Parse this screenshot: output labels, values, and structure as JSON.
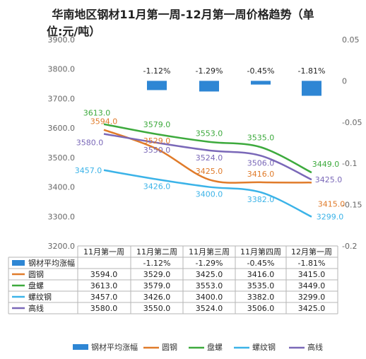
{
  "title_line1": "华南地区钢材11月第一周-12月第一周价格趋势（单",
  "title_line2": "位:元/吨）",
  "chart_data": {
    "type": "line",
    "title": "华南地区钢材11月第一周-12月第一周价格趋势（单位:元/吨）",
    "categories": [
      "11月第一周",
      "11月第二周",
      "11月第三周",
      "11月第四周",
      "12月第一周"
    ],
    "y_left": {
      "ylim": [
        3200,
        3900
      ],
      "ticks": [
        "3200.0",
        "3300.0",
        "3400.0",
        "3500.0",
        "3600.0",
        "3700.0",
        "3800.0",
        "3900.0"
      ]
    },
    "y_right": {
      "ylim": [
        -0.2,
        0.05
      ],
      "ticks": [
        "0.05",
        "0",
        "-0.05",
        "-0.1",
        "-0.15",
        "-0.2"
      ]
    },
    "grid": false,
    "legend_position": "bottom",
    "bar_series": {
      "name": "钢材平均涨幅",
      "color": "#2e86d4",
      "values": [
        null,
        -1.12,
        -1.29,
        -0.45,
        -1.81
      ],
      "labels": [
        "",
        "-1.12%",
        "-1.29%",
        "-0.45%",
        "-1.81%"
      ]
    },
    "series": [
      {
        "name": "圆钢",
        "color": "#e07b2a",
        "values": [
          3594.0,
          3529.0,
          3425.0,
          3416.0,
          3415.0
        ],
        "labels": [
          "3594.0",
          "3529.0",
          "3425.0",
          "3416.0",
          "3415.0"
        ]
      },
      {
        "name": "盘螺",
        "color": "#3daa3d",
        "values": [
          3613.0,
          3579.0,
          3553.0,
          3535.0,
          3449.0
        ],
        "labels": [
          "3613.0",
          "3579.0",
          "3553.0",
          "3535.0",
          "3449.0"
        ]
      },
      {
        "name": "螺纹钢",
        "color": "#3bb3e8",
        "values": [
          3457.0,
          3426.0,
          3400.0,
          3382.0,
          3299.0
        ],
        "labels": [
          "3457.0",
          "3426.0",
          "3400.0",
          "3382.0",
          "3299.0"
        ]
      },
      {
        "name": "高线",
        "color": "#7a68b8",
        "values": [
          3580.0,
          3550.0,
          3524.0,
          3506.0,
          3425.0
        ],
        "labels": [
          "3580.0",
          "3550.0",
          "3524.0",
          "3506.0",
          "3425.0"
        ]
      }
    ],
    "table": {
      "rows": [
        {
          "name": "钢材平均涨幅",
          "cells": [
            "",
            "-1.12%",
            "-1.29%",
            "-0.45%",
            "-1.81%"
          ]
        },
        {
          "name": "圆钢",
          "cells": [
            "3594.0",
            "3529.0",
            "3425.0",
            "3416.0",
            "3415.0"
          ]
        },
        {
          "name": "盘螺",
          "cells": [
            "3613.0",
            "3579.0",
            "3553.0",
            "3535.0",
            "3449.0"
          ]
        },
        {
          "name": "螺纹钢",
          "cells": [
            "3457.0",
            "3426.0",
            "3400.0",
            "3382.0",
            "3299.0"
          ]
        },
        {
          "name": "高线",
          "cells": [
            "3580.0",
            "3550.0",
            "3524.0",
            "3506.0",
            "3425.0"
          ]
        }
      ]
    }
  }
}
